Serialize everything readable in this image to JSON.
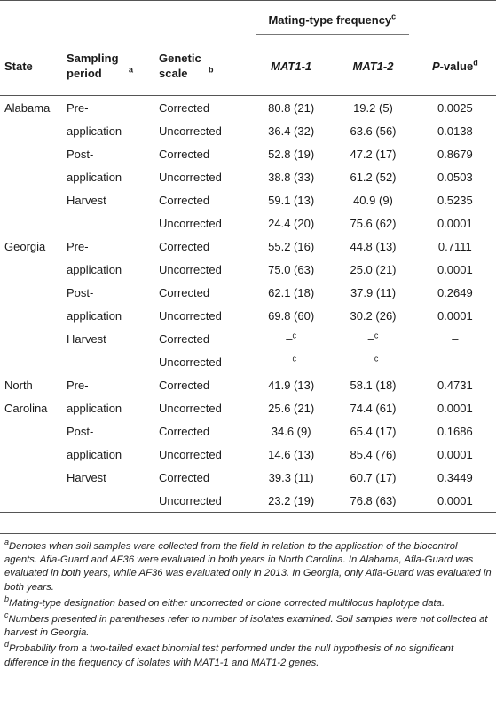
{
  "header": {
    "state": "State",
    "sampling_period": "Sampling period",
    "sampling_sup": "a",
    "genetic_scale": "Genetic scale",
    "genetic_sup": "b",
    "mating_type_frequency": "Mating-type frequency",
    "mating_sup": "c",
    "mat1_1": "MAT1-1",
    "mat1_2": "MAT1-2",
    "p_value_label": "-value",
    "p_letter": "P",
    "p_sup": "d"
  },
  "rows": [
    {
      "state": "Alabama",
      "period": "Pre-",
      "scale": "Corrected",
      "mat1": "80.8 (21)",
      "mat2": "19.2 (5)",
      "p": "0.0025"
    },
    {
      "state": "",
      "period": "application",
      "scale": "Uncorrected",
      "mat1": "36.4 (32)",
      "mat2": "63.6 (56)",
      "p": "0.0138"
    },
    {
      "state": "",
      "period": "Post-",
      "scale": "Corrected",
      "mat1": "52.8 (19)",
      "mat2": "47.2 (17)",
      "p": "0.8679"
    },
    {
      "state": "",
      "period": "application",
      "scale": "Uncorrected",
      "mat1": "38.8 (33)",
      "mat2": "61.2 (52)",
      "p": "0.0503"
    },
    {
      "state": "",
      "period": "Harvest",
      "scale": "Corrected",
      "mat1": "59.1 (13)",
      "mat2": "40.9 (9)",
      "p": "0.5235"
    },
    {
      "state": "",
      "period": "",
      "scale": "Uncorrected",
      "mat1": "24.4 (20)",
      "mat2": "75.6 (62)",
      "p": "0.0001"
    },
    {
      "state": "Georgia",
      "period": "Pre-",
      "scale": "Corrected",
      "mat1": "55.2 (16)",
      "mat2": "44.8 (13)",
      "p": "0.7111"
    },
    {
      "state": "",
      "period": "application",
      "scale": "Uncorrected",
      "mat1": "75.0 (63)",
      "mat2": "25.0 (21)",
      "p": "0.0001"
    },
    {
      "state": "",
      "period": "Post-",
      "scale": "Corrected",
      "mat1": "62.1 (18)",
      "mat2": "37.9 (11)",
      "p": "0.2649"
    },
    {
      "state": "",
      "period": "application",
      "scale": "Uncorrected",
      "mat1": "69.8 (60)",
      "mat2": "30.2 (26)",
      "p": "0.0001"
    },
    {
      "state": "",
      "period": "Harvest",
      "scale": "Corrected",
      "mat1": "–",
      "mat1_sup": "c",
      "mat2": "–",
      "mat2_sup": "c",
      "p": "–"
    },
    {
      "state": "",
      "period": "",
      "scale": "Uncorrected",
      "mat1": "–",
      "mat1_sup": "c",
      "mat2": "–",
      "mat2_sup": "c",
      "p": "–"
    },
    {
      "state": "North",
      "period": "Pre-",
      "scale": "Corrected",
      "mat1": "41.9 (13)",
      "mat2": "58.1 (18)",
      "p": "0.4731"
    },
    {
      "state": "Carolina",
      "period": "application",
      "scale": "Uncorrected",
      "mat1": "25.6 (21)",
      "mat2": "74.4 (61)",
      "p": "0.0001"
    },
    {
      "state": "",
      "period": "Post-",
      "scale": "Corrected",
      "mat1": "34.6 (9)",
      "mat2": "65.4 (17)",
      "p": "0.1686"
    },
    {
      "state": "",
      "period": "application",
      "scale": "Uncorrected",
      "mat1": "14.6 (13)",
      "mat2": "85.4 (76)",
      "p": "0.0001"
    },
    {
      "state": "",
      "period": "Harvest",
      "scale": "Corrected",
      "mat1": "39.3 (11)",
      "mat2": "60.7 (17)",
      "p": "0.3449"
    },
    {
      "state": "",
      "period": "",
      "scale": "Uncorrected",
      "mat1": "23.2 (19)",
      "mat2": "76.8 (63)",
      "p": "0.0001"
    }
  ],
  "footnotes": [
    {
      "mark": "a",
      "text": "Denotes when soil samples were collected from the field in relation to the application of the biocontrol agents. Afla-Guard and AF36 were evaluated in both years in North Carolina. In Alabama, Afla-Guard was evaluated in both years, while AF36 was evaluated only in 2013. In Georgia, only Afla-Guard was evaluated in both years."
    },
    {
      "mark": "b",
      "text": "Mating-type designation based on either uncorrected or clone corrected multilocus haplotype data."
    },
    {
      "mark": "c",
      "text": "Numbers presented in parentheses refer to number of isolates examined. Soil samples were not collected at harvest in Georgia."
    },
    {
      "mark": "d",
      "text": "Probability from a two-tailed exact binomial test performed under the null hypothesis of no significant difference in the frequency of isolates with MAT1-1 and MAT1-2 genes."
    }
  ]
}
